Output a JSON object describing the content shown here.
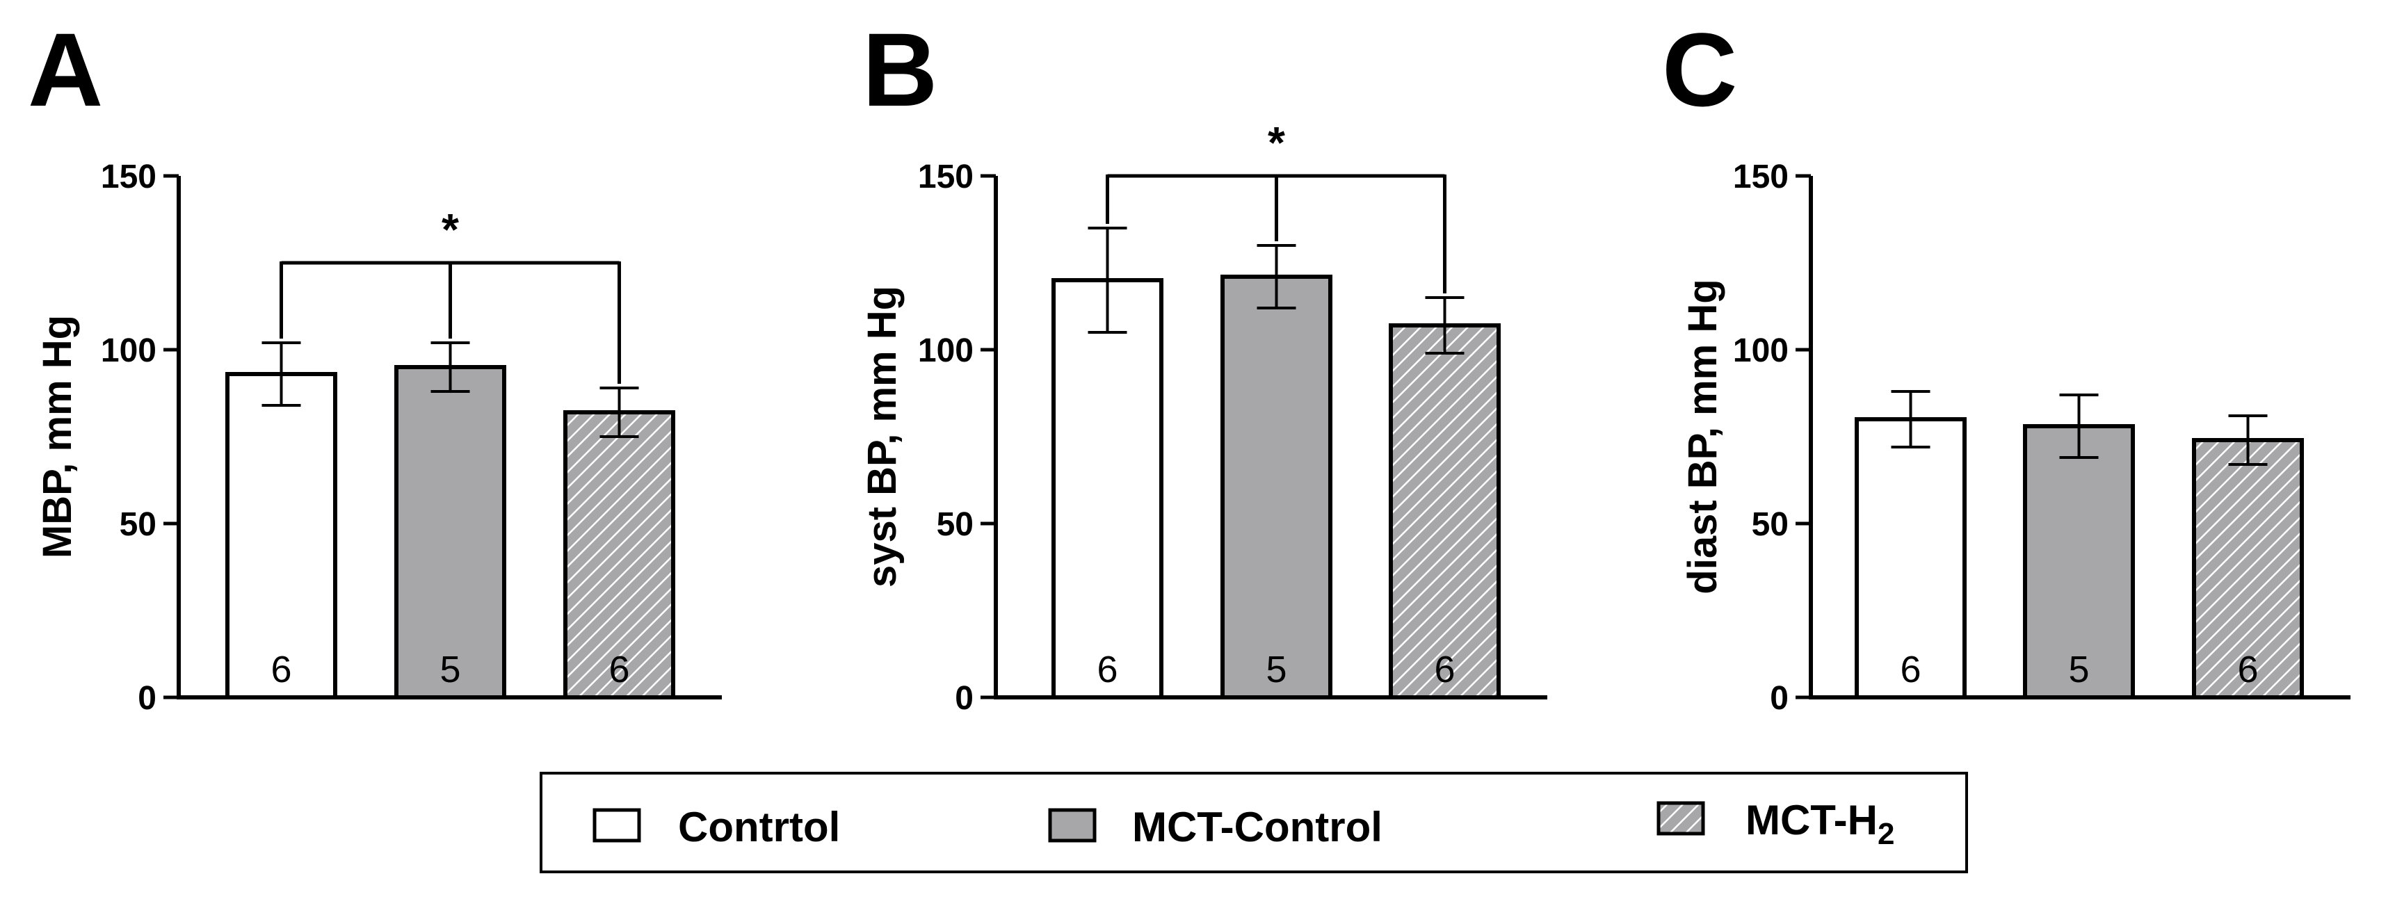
{
  "legend": {
    "items": [
      {
        "label": "Contrtol",
        "color": "#ffffff",
        "pattern": "none"
      },
      {
        "label": "MCT-Control",
        "color": "#a7a7aa",
        "pattern": "none"
      },
      {
        "label": "MCT-H",
        "subscript": "2",
        "color": "#a7a7aa",
        "pattern": "hatch"
      }
    ]
  },
  "chart_data": [
    {
      "type": "bar",
      "panel": "A",
      "ylabel": "MBP, mm Hg",
      "ylim": [
        0,
        150
      ],
      "yticks": [
        0,
        50,
        100,
        150
      ],
      "categories": [
        "Contrtol",
        "MCT-Control",
        "MCT-H2"
      ],
      "values": [
        93,
        95,
        82
      ],
      "errors": [
        9,
        7,
        7
      ],
      "n": [
        "6",
        "5",
        "6"
      ],
      "significance": {
        "label": "*",
        "bracket_y": 125,
        "groups": [
          0,
          1,
          2
        ]
      }
    },
    {
      "type": "bar",
      "panel": "B",
      "ylabel": "syst BP, mm Hg",
      "ylim": [
        0,
        150
      ],
      "yticks": [
        0,
        50,
        100,
        150
      ],
      "categories": [
        "Contrtol",
        "MCT-Control",
        "MCT-H2"
      ],
      "values": [
        120,
        121,
        107
      ],
      "errors": [
        15,
        9,
        8
      ],
      "n": [
        "6",
        "5",
        "6"
      ],
      "significance": {
        "label": "*",
        "bracket_y": 150,
        "groups": [
          0,
          1,
          2
        ]
      }
    },
    {
      "type": "bar",
      "panel": "C",
      "ylabel": "diast BP, mm Hg",
      "ylim": [
        0,
        150
      ],
      "yticks": [
        0,
        50,
        100,
        150
      ],
      "categories": [
        "Contrtol",
        "MCT-Control",
        "MCT-H2"
      ],
      "values": [
        80,
        78,
        74
      ],
      "errors": [
        8,
        9,
        7
      ],
      "n": [
        "6",
        "5",
        "6"
      ],
      "significance": null
    }
  ]
}
